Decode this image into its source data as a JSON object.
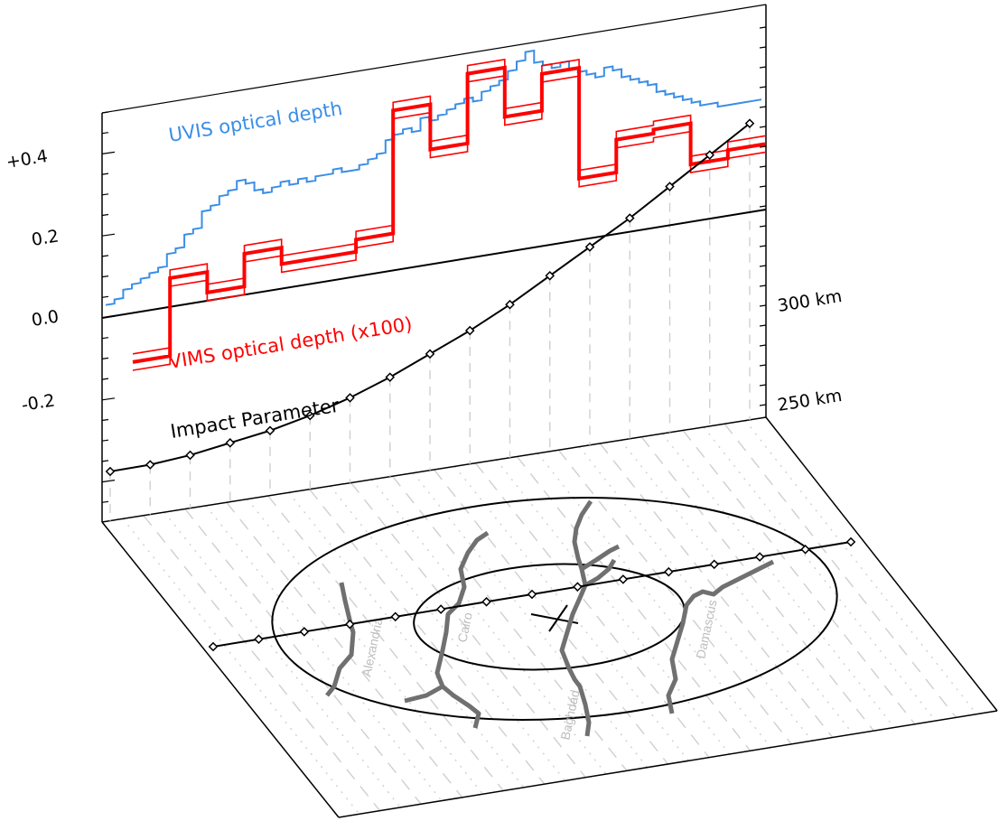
{
  "chart_data": {
    "type": "line",
    "ylim": [
      -0.35,
      0.55
    ],
    "yticks": [
      {
        "value": 0.4,
        "label": "+0.4"
      },
      {
        "value": 0.2,
        "label": "0.2"
      },
      {
        "value": 0.0,
        "label": "0.0"
      },
      {
        "value": -0.2,
        "label": "-0.2"
      }
    ],
    "impact_ticks": [
      {
        "value": 300,
        "label": "300 km"
      },
      {
        "value": 250,
        "label": "250 km"
      }
    ],
    "n_samples": 17,
    "series": [
      {
        "name": "UVIS optical depth",
        "color": "#3a8ee6",
        "type": "step",
        "values": [
          0.03,
          0.04,
          0.06,
          0.07,
          0.08,
          0.09,
          0.1,
          0.13,
          0.14,
          0.17,
          0.18,
          0.22,
          0.23,
          0.25,
          0.26,
          0.28,
          0.27,
          0.25,
          0.24,
          0.25,
          0.26,
          0.25,
          0.26,
          0.25,
          0.26,
          0.26,
          0.27,
          0.26,
          0.26,
          0.27,
          0.28,
          0.29,
          0.32,
          0.33,
          0.34,
          0.33,
          0.36,
          0.35,
          0.36,
          0.37,
          0.38,
          0.39,
          0.38,
          0.4,
          0.41,
          0.42,
          0.44,
          0.46,
          0.48,
          0.45,
          0.44,
          0.43,
          0.44,
          0.42,
          0.41,
          0.4,
          0.39,
          0.41,
          0.4,
          0.38,
          0.37,
          0.36,
          0.35,
          0.33,
          0.32,
          0.31,
          0.3,
          0.29,
          0.28,
          0.28,
          0.27,
          0.27,
          0.27,
          0.27,
          0.27
        ]
      },
      {
        "name": "VIMS optical depth (x100)",
        "color": "#ff0000",
        "type": "step",
        "values": [
          -0.12,
          0.07,
          0.02,
          0.1,
          0.06,
          0.06,
          0.09,
          0.39,
          0.28,
          0.45,
          0.33,
          0.42,
          0.15,
          0.23,
          0.24,
          0.14,
          0.16
        ],
        "band": 0.02
      },
      {
        "name": "Impact Parameter",
        "color": "#000000",
        "type": "line",
        "values_km": [
          220,
          220,
          221,
          223,
          225,
          228,
          232,
          237,
          243,
          249,
          256,
          264,
          272,
          280,
          289,
          298,
          307
        ]
      }
    ],
    "map": {
      "cities": [
        "Alexandria",
        "Cairo",
        "Baghdad",
        "Damascus"
      ],
      "ellipses": 2
    }
  }
}
